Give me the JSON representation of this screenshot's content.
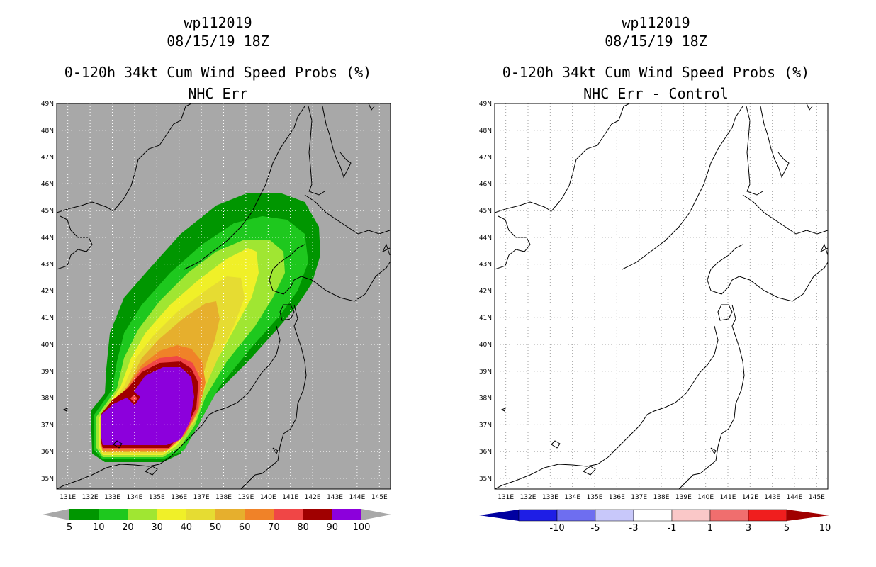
{
  "panels": [
    {
      "storm_id": "wp112019",
      "date": "08/15/19 18Z",
      "title": "0-120h 34kt Cum Wind Speed Probs (%)",
      "subtitle": "NHC Err"
    },
    {
      "storm_id": "wp112019",
      "date": "08/15/19 18Z",
      "title": "0-120h 34kt Cum Wind Speed Probs (%)",
      "subtitle": "NHC Err - Control"
    }
  ],
  "chart_data": [
    {
      "type": "heatmap",
      "title": "0-120h 34kt Cum Wind Speed Probs (%)",
      "subtitle": "NHC Err",
      "x_ticks": [
        "131E",
        "132E",
        "133E",
        "134E",
        "135E",
        "136E",
        "137E",
        "138E",
        "139E",
        "140E",
        "141E",
        "142E",
        "143E",
        "144E",
        "145E"
      ],
      "y_ticks": [
        "35N",
        "36N",
        "37N",
        "38N",
        "39N",
        "40N",
        "41N",
        "42N",
        "43N",
        "44N",
        "45N",
        "46N",
        "47N",
        "48N",
        "49N"
      ],
      "xlim": [
        130.5,
        145.5
      ],
      "ylim": [
        34.6,
        49
      ],
      "legend_labels": [
        "5",
        "10",
        "20",
        "30",
        "40",
        "50",
        "60",
        "70",
        "80",
        "90",
        "100"
      ],
      "legend_colors": [
        "#009600",
        "#1ec81e",
        "#a0e632",
        "#f0f028",
        "#e6dc32",
        "#e6af2d",
        "#f08228",
        "#f04646",
        "#a00000",
        "#8c00dc"
      ],
      "background_color": "#a8a8a8",
      "grid": true
    },
    {
      "type": "heatmap",
      "title": "0-120h 34kt Cum Wind Speed Probs (%)",
      "subtitle": "NHC Err - Control",
      "x_ticks": [
        "131E",
        "132E",
        "133E",
        "134E",
        "135E",
        "136E",
        "137E",
        "138E",
        "139E",
        "140E",
        "141E",
        "142E",
        "143E",
        "144E",
        "145E"
      ],
      "y_ticks": [
        "35N",
        "36N",
        "37N",
        "38N",
        "39N",
        "40N",
        "41N",
        "42N",
        "43N",
        "44N",
        "45N",
        "46N",
        "47N",
        "48N",
        "49N"
      ],
      "xlim": [
        130.5,
        145.5
      ],
      "ylim": [
        34.6,
        49
      ],
      "legend_labels": [
        "-10",
        "-5",
        "-3",
        "-1",
        "1",
        "3",
        "5",
        "10"
      ],
      "legend_colors": [
        "#0000a0",
        "#1e1ee6",
        "#6e6ef0",
        "#c8c8fa",
        "#ffffff",
        "#fac8c8",
        "#f06e6e",
        "#f01e1e",
        "#a00000"
      ],
      "background_color": "#ffffff",
      "grid": true
    }
  ]
}
